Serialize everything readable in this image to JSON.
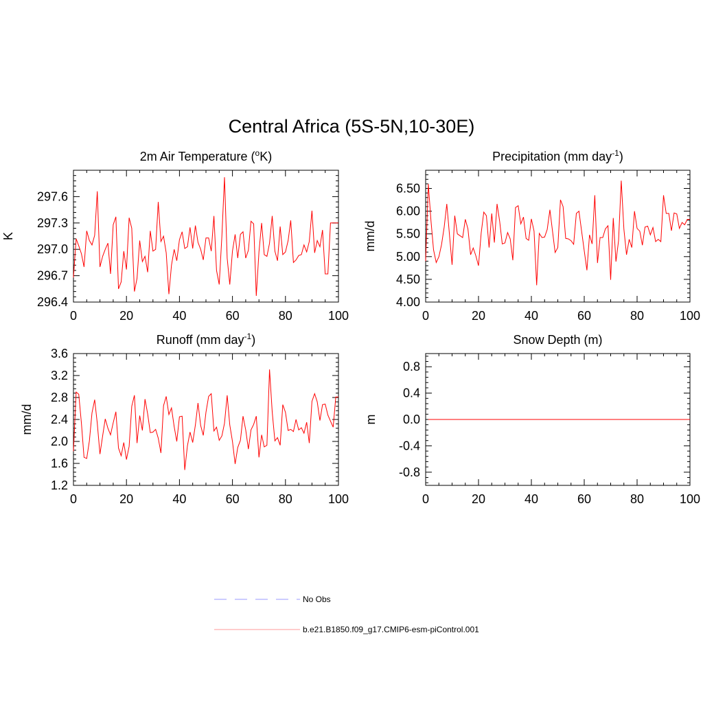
{
  "figure": {
    "title": "Central Africa (5S-5N,10-30E)"
  },
  "colors": {
    "model_line": "#ff0000",
    "obs_line": "#9999ff",
    "model_legend_line": "#ff9999"
  },
  "legend": {
    "items": [
      {
        "label": "No Obs",
        "style": "dashed"
      },
      {
        "label": "b.e21.B1850.f09_g17.CMIP6-esm-piControl.001",
        "style": "solid"
      }
    ]
  },
  "chart_data": [
    {
      "type": "line",
      "title_main": "2m Air Temperature (",
      "title_sup": "o",
      "title_tail": "K)",
      "ylabel": "K",
      "xlim": [
        0,
        100
      ],
      "ylim": [
        296.4,
        297.9
      ],
      "xticks": [
        "0",
        "20",
        "40",
        "60",
        "80",
        "100"
      ],
      "yticks": [
        "296.4",
        "296.7",
        "297.0",
        "297.3",
        "297.6"
      ],
      "series": [
        {
          "x": [
            0,
            1,
            2,
            3,
            4,
            5,
            6,
            7,
            8,
            9,
            10,
            11,
            12,
            13,
            14,
            15,
            16,
            17,
            18,
            19,
            20,
            21,
            22,
            23,
            24,
            25,
            26,
            27,
            28,
            29,
            30,
            31,
            32,
            33,
            34,
            35,
            36,
            37,
            38,
            39,
            40,
            41,
            42,
            43,
            44,
            45,
            46,
            47,
            48,
            49,
            50,
            51,
            52,
            53,
            54,
            55,
            56,
            57,
            58,
            59,
            60,
            61,
            62,
            63,
            64,
            65,
            66,
            67,
            68,
            69,
            70,
            71,
            72,
            73,
            74,
            75,
            76,
            77,
            78,
            79,
            80,
            81,
            82,
            83,
            84,
            85,
            86,
            87,
            88,
            89,
            90,
            91,
            92,
            93,
            94,
            95,
            96,
            97,
            98,
            99,
            100
          ],
          "values": [
            296.68,
            297.12,
            297.04,
            296.95,
            296.8,
            297.21,
            297.1,
            297.05,
            297.16,
            297.66,
            296.8,
            296.92,
            297.0,
            297.07,
            296.72,
            297.28,
            297.37,
            296.55,
            296.63,
            296.98,
            296.77,
            297.36,
            297.24,
            296.52,
            296.67,
            297.1,
            296.86,
            296.92,
            296.74,
            297.21,
            296.98,
            297.0,
            297.54,
            297.09,
            297.15,
            296.96,
            296.49,
            296.82,
            297.0,
            296.87,
            297.11,
            297.2,
            297.01,
            297.03,
            297.25,
            297.01,
            297.27,
            297.08,
            297.0,
            296.88,
            297.13,
            297.13,
            296.98,
            297.38,
            296.76,
            296.6,
            297.15,
            297.82,
            296.9,
            296.6,
            296.98,
            297.17,
            296.9,
            297.17,
            297.2,
            296.9,
            296.99,
            297.32,
            297.29,
            296.47,
            296.97,
            297.3,
            296.94,
            296.92,
            297.07,
            297.38,
            296.98,
            296.87,
            297.26,
            296.94,
            296.97,
            297.1,
            297.33,
            296.85,
            296.88,
            296.93,
            296.94,
            297.05,
            296.97,
            297.09,
            297.44,
            296.96,
            297.1,
            297.03,
            297.22,
            296.72,
            296.72,
            297.3,
            297.3,
            297.3,
            297.3
          ]
        }
      ]
    },
    {
      "type": "line",
      "title_main": "Precipitation (mm day",
      "title_sup": "-1",
      "title_tail": ")",
      "ylabel": "mm/d",
      "xlim": [
        0,
        100
      ],
      "ylim": [
        4.0,
        6.9
      ],
      "xticks": [
        "0",
        "20",
        "40",
        "60",
        "80",
        "100"
      ],
      "yticks": [
        "4.00",
        "4.50",
        "5.00",
        "5.50",
        "6.00",
        "6.50"
      ],
      "series": [
        {
          "x": [
            0,
            1,
            2,
            3,
            4,
            5,
            6,
            7,
            8,
            9,
            10,
            11,
            12,
            13,
            14,
            15,
            16,
            17,
            18,
            19,
            20,
            21,
            22,
            23,
            24,
            25,
            26,
            27,
            28,
            29,
            30,
            31,
            32,
            33,
            34,
            35,
            36,
            37,
            38,
            39,
            40,
            41,
            42,
            43,
            44,
            45,
            46,
            47,
            48,
            49,
            50,
            51,
            52,
            53,
            54,
            55,
            56,
            57,
            58,
            59,
            60,
            61,
            62,
            63,
            64,
            65,
            66,
            67,
            68,
            69,
            70,
            71,
            72,
            73,
            74,
            75,
            76,
            77,
            78,
            79,
            80,
            81,
            82,
            83,
            84,
            85,
            86,
            87,
            88,
            89,
            90,
            91,
            92,
            93,
            94,
            95,
            96,
            97,
            98,
            99,
            100
          ],
          "values": [
            4.9,
            6.6,
            5.8,
            5.15,
            4.87,
            5.0,
            5.26,
            5.65,
            6.16,
            5.5,
            4.82,
            5.9,
            5.5,
            5.46,
            5.42,
            5.82,
            5.61,
            5.04,
            5.19,
            5.02,
            4.8,
            5.52,
            5.98,
            5.9,
            5.2,
            5.95,
            5.31,
            6.16,
            5.78,
            5.28,
            5.3,
            5.53,
            5.39,
            4.92,
            6.08,
            6.12,
            5.72,
            5.87,
            5.4,
            5.36,
            5.83,
            5.56,
            4.37,
            5.51,
            5.42,
            5.43,
            5.6,
            6.03,
            5.56,
            5.09,
            5.2,
            6.25,
            6.1,
            5.4,
            5.39,
            5.35,
            5.27,
            5.95,
            6.0,
            5.57,
            5.13,
            4.7,
            5.48,
            5.28,
            6.35,
            4.86,
            5.42,
            5.42,
            5.61,
            5.68,
            4.49,
            5.85,
            4.89,
            5.35,
            6.67,
            5.6,
            5.04,
            5.38,
            5.2,
            6.0,
            5.62,
            5.56,
            5.25,
            5.65,
            5.67,
            5.48,
            5.64,
            5.33,
            5.38,
            5.33,
            6.35,
            5.95,
            5.95,
            5.57,
            5.96,
            5.94,
            5.62,
            5.75,
            5.7,
            5.82,
            5.82
          ]
        }
      ]
    },
    {
      "type": "line",
      "title_main": "Runoff (mm day",
      "title_sup": "-1",
      "title_tail": ")",
      "ylabel": "mm/d",
      "xlim": [
        0,
        100
      ],
      "ylim": [
        1.2,
        3.6
      ],
      "xticks": [
        "0",
        "20",
        "40",
        "60",
        "80",
        "100"
      ],
      "yticks": [
        "1.2",
        "1.6",
        "2.0",
        "2.4",
        "2.8",
        "3.2",
        "3.6"
      ],
      "series": [
        {
          "x": [
            0,
            1,
            2,
            3,
            4,
            5,
            6,
            7,
            8,
            9,
            10,
            11,
            12,
            13,
            14,
            15,
            16,
            17,
            18,
            19,
            20,
            21,
            22,
            23,
            24,
            25,
            26,
            27,
            28,
            29,
            30,
            31,
            32,
            33,
            34,
            35,
            36,
            37,
            38,
            39,
            40,
            41,
            42,
            43,
            44,
            45,
            46,
            47,
            48,
            49,
            50,
            51,
            52,
            53,
            54,
            55,
            56,
            57,
            58,
            59,
            60,
            61,
            62,
            63,
            64,
            65,
            66,
            67,
            68,
            69,
            70,
            71,
            72,
            73,
            74,
            75,
            76,
            77,
            78,
            79,
            80,
            81,
            82,
            83,
            84,
            85,
            86,
            87,
            88,
            89,
            90,
            91,
            92,
            93,
            94,
            95,
            96,
            97,
            98,
            99,
            100
          ],
          "values": [
            1.82,
            2.9,
            2.86,
            2.33,
            1.71,
            1.69,
            2.01,
            2.52,
            2.76,
            2.33,
            1.77,
            2.1,
            2.41,
            2.24,
            2.12,
            2.34,
            2.54,
            1.88,
            1.74,
            1.98,
            1.67,
            1.91,
            2.64,
            2.84,
            1.97,
            2.47,
            2.2,
            2.77,
            2.5,
            2.16,
            2.17,
            2.22,
            2.06,
            1.79,
            2.65,
            2.82,
            2.49,
            2.61,
            2.27,
            2.0,
            2.45,
            2.46,
            1.48,
            1.92,
            2.17,
            1.98,
            2.3,
            2.7,
            2.29,
            2.11,
            2.53,
            2.82,
            2.87,
            2.19,
            2.26,
            2.02,
            2.1,
            2.33,
            2.84,
            2.3,
            2.0,
            1.59,
            1.89,
            2.02,
            2.46,
            2.21,
            1.86,
            2.21,
            2.31,
            2.46,
            1.71,
            2.12,
            1.9,
            1.93,
            3.31,
            2.54,
            2.01,
            2.07,
            1.93,
            2.67,
            2.53,
            2.2,
            2.22,
            2.18,
            2.4,
            2.21,
            2.25,
            2.15,
            2.35,
            1.97,
            2.73,
            2.87,
            2.72,
            2.38,
            2.67,
            2.68,
            2.48,
            2.37,
            2.26,
            2.81,
            2.81
          ]
        }
      ]
    },
    {
      "type": "line",
      "title_main": "Snow Depth (m)",
      "title_sup": "",
      "title_tail": "",
      "ylabel": "m",
      "xlim": [
        0,
        100
      ],
      "ylim": [
        -1.0,
        1.0
      ],
      "xticks": [
        "0",
        "20",
        "40",
        "60",
        "80",
        "100"
      ],
      "yticks": [
        "-0.8",
        "-0.4",
        "0.0",
        "0.4",
        "0.8"
      ],
      "series": [
        {
          "x": [
            1,
            100
          ],
          "values": [
            0.0,
            0.0
          ]
        }
      ]
    }
  ]
}
